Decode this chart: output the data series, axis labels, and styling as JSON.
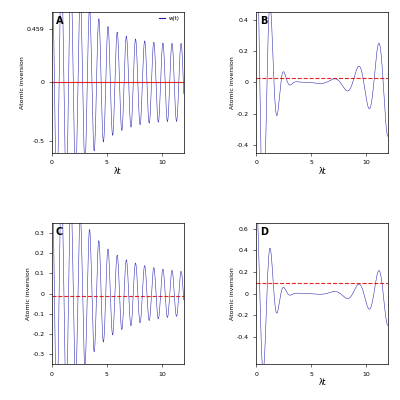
{
  "panel_labels": [
    "A",
    "B",
    "C",
    "D"
  ],
  "xlim": [
    0,
    12
  ],
  "xlabel": "λt",
  "ylabel": "Atomic inversion",
  "panel_A": {
    "ylim": [
      -0.6,
      0.6
    ],
    "yticks": [
      -0.5,
      0,
      0.459
    ],
    "ytick_labels": [
      "-0.5",
      "0",
      "0.459"
    ],
    "red_line_y": 0,
    "red_linestyle": "-",
    "has_legend": true,
    "legend_label": "w(t)"
  },
  "panel_B": {
    "ylim": [
      -0.45,
      0.45
    ],
    "yticks": [
      -0.4,
      -0.2,
      0,
      0.2,
      0.4
    ],
    "ytick_labels": [
      "-0.4",
      "-0.2",
      "0",
      "0.2",
      "0.4"
    ],
    "red_line_y": 0.03,
    "red_linestyle": "--"
  },
  "panel_C": {
    "ylim": [
      -0.35,
      0.35
    ],
    "yticks": [
      -0.3,
      -0.2,
      -0.1,
      0,
      0.1,
      0.2,
      0.3
    ],
    "ytick_labels": [
      "-0.3",
      "-0.2",
      "-0.1",
      "0",
      "0.1",
      "0.2",
      "0.3"
    ],
    "red_line_y": -0.01,
    "red_linestyle": "--"
  },
  "panel_D": {
    "ylim": [
      -0.65,
      0.65
    ],
    "yticks": [
      -0.4,
      -0.2,
      0,
      0.2,
      0.4,
      0.6
    ],
    "ytick_labels": [
      "-0.4",
      "-0.2",
      "0",
      "0.2",
      "0.4",
      "0.6"
    ],
    "red_line_y": 0.1,
    "red_linestyle": "--"
  },
  "line_color": "#1a1aaa",
  "red_color": "#dd0000",
  "bg_color": "#ffffff",
  "n_points": 12000,
  "t_max": 12.0
}
